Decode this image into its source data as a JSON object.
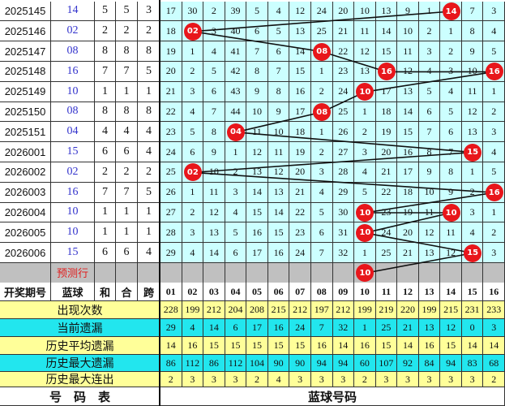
{
  "colors": {
    "hit_ball": "#e8161b",
    "miss_cell": "#ccffff",
    "blue_text": "#3333cc",
    "predict_row": "#c0c0c0",
    "stat_yellow": "#ffff99",
    "stat_cyan": "#22e6ee",
    "predict_label": "#e02020"
  },
  "rows": [
    {
      "period": "2025145",
      "blue": "14",
      "he": "5",
      "hehe": "5",
      "kua": "3",
      "cells": [
        "17",
        "30",
        "2",
        "39",
        "5",
        "4",
        "12",
        "24",
        "20",
        "10",
        "13",
        "9",
        "1",
        "14",
        "7",
        "3"
      ]
    },
    {
      "period": "2025146",
      "blue": "02",
      "he": "2",
      "hehe": "2",
      "kua": "2",
      "cells": [
        "18",
        "02",
        "3",
        "40",
        "6",
        "5",
        "13",
        "25",
        "21",
        "11",
        "14",
        "10",
        "2",
        "1",
        "8",
        "4"
      ]
    },
    {
      "period": "2025147",
      "blue": "08",
      "he": "8",
      "hehe": "8",
      "kua": "8",
      "cells": [
        "19",
        "1",
        "4",
        "41",
        "7",
        "6",
        "14",
        "08",
        "22",
        "12",
        "15",
        "11",
        "3",
        "2",
        "9",
        "5"
      ]
    },
    {
      "period": "2025148",
      "blue": "16",
      "he": "7",
      "hehe": "7",
      "kua": "5",
      "cells": [
        "20",
        "2",
        "5",
        "42",
        "8",
        "7",
        "15",
        "1",
        "23",
        "13",
        "16",
        "12",
        "4",
        "3",
        "10",
        "16"
      ]
    },
    {
      "period": "2025149",
      "blue": "10",
      "he": "1",
      "hehe": "1",
      "kua": "1",
      "cells": [
        "21",
        "3",
        "6",
        "43",
        "9",
        "8",
        "16",
        "2",
        "24",
        "10",
        "17",
        "13",
        "5",
        "4",
        "11",
        "1"
      ]
    },
    {
      "period": "2025150",
      "blue": "08",
      "he": "8",
      "hehe": "8",
      "kua": "8",
      "cells": [
        "22",
        "4",
        "7",
        "44",
        "10",
        "9",
        "17",
        "08",
        "25",
        "1",
        "18",
        "14",
        "6",
        "5",
        "12",
        "2"
      ]
    },
    {
      "period": "2025151",
      "blue": "04",
      "he": "4",
      "hehe": "4",
      "kua": "4",
      "cells": [
        "23",
        "5",
        "8",
        "04",
        "11",
        "10",
        "18",
        "1",
        "26",
        "2",
        "19",
        "15",
        "7",
        "6",
        "13",
        "3"
      ]
    },
    {
      "period": "2026001",
      "blue": "15",
      "he": "6",
      "hehe": "6",
      "kua": "4",
      "cells": [
        "24",
        "6",
        "9",
        "1",
        "12",
        "11",
        "19",
        "2",
        "27",
        "3",
        "20",
        "16",
        "8",
        "7",
        "15",
        "4"
      ]
    },
    {
      "period": "2026002",
      "blue": "02",
      "he": "2",
      "hehe": "2",
      "kua": "2",
      "cells": [
        "25",
        "02",
        "10",
        "2",
        "13",
        "12",
        "20",
        "3",
        "28",
        "4",
        "21",
        "17",
        "9",
        "8",
        "1",
        "5"
      ]
    },
    {
      "period": "2026003",
      "blue": "16",
      "he": "7",
      "hehe": "7",
      "kua": "5",
      "cells": [
        "26",
        "1",
        "11",
        "3",
        "14",
        "13",
        "21",
        "4",
        "29",
        "5",
        "22",
        "18",
        "10",
        "9",
        "2",
        "16"
      ]
    },
    {
      "period": "2026004",
      "blue": "10",
      "he": "1",
      "hehe": "1",
      "kua": "1",
      "cells": [
        "27",
        "2",
        "12",
        "4",
        "15",
        "14",
        "22",
        "5",
        "30",
        "10",
        "23",
        "19",
        "11",
        "10",
        "3",
        "1"
      ]
    },
    {
      "period": "2026005",
      "blue": "10",
      "he": "1",
      "hehe": "1",
      "kua": "1",
      "cells": [
        "28",
        "3",
        "13",
        "5",
        "16",
        "15",
        "23",
        "6",
        "31",
        "10",
        "24",
        "20",
        "12",
        "11",
        "4",
        "2"
      ]
    },
    {
      "period": "2026006",
      "blue": "15",
      "he": "6",
      "hehe": "6",
      "kua": "4",
      "cells": [
        "29",
        "4",
        "14",
        "6",
        "17",
        "16",
        "24",
        "7",
        "32",
        "1",
        "25",
        "21",
        "13",
        "12",
        "15",
        "3"
      ]
    }
  ],
  "predict": {
    "label": "预测行",
    "ball": "10"
  },
  "header": {
    "period": "开奖期号",
    "blue": "蓝球",
    "he": "和",
    "hehe": "合",
    "kua": "跨",
    "numbers": [
      "01",
      "02",
      "03",
      "04",
      "05",
      "06",
      "07",
      "08",
      "09",
      "10",
      "11",
      "12",
      "13",
      "14",
      "15",
      "16"
    ]
  },
  "stats": [
    {
      "label": "出现次数",
      "values": [
        "228",
        "199",
        "212",
        "204",
        "208",
        "215",
        "212",
        "197",
        "212",
        "199",
        "219",
        "220",
        "199",
        "215",
        "231",
        "233"
      ]
    },
    {
      "label": "当前遗漏",
      "values": [
        "29",
        "4",
        "14",
        "6",
        "17",
        "16",
        "24",
        "7",
        "32",
        "1",
        "25",
        "21",
        "13",
        "12",
        "0",
        "3"
      ]
    },
    {
      "label": "历史平均遗漏",
      "values": [
        "14",
        "16",
        "15",
        "15",
        "15",
        "15",
        "15",
        "16",
        "14",
        "16",
        "15",
        "14",
        "16",
        "15",
        "14",
        "14"
      ]
    },
    {
      "label": "历史最大遗漏",
      "values": [
        "86",
        "112",
        "86",
        "112",
        "104",
        "90",
        "90",
        "94",
        "94",
        "60",
        "107",
        "92",
        "84",
        "94",
        "83",
        "68"
      ]
    },
    {
      "label": "历史最大连出",
      "values": [
        "2",
        "3",
        "3",
        "3",
        "2",
        "4",
        "3",
        "3",
        "3",
        "2",
        "3",
        "3",
        "3",
        "3",
        "3",
        "2"
      ]
    }
  ],
  "footer": {
    "left": "号　码　表",
    "right": "蓝球号码"
  }
}
